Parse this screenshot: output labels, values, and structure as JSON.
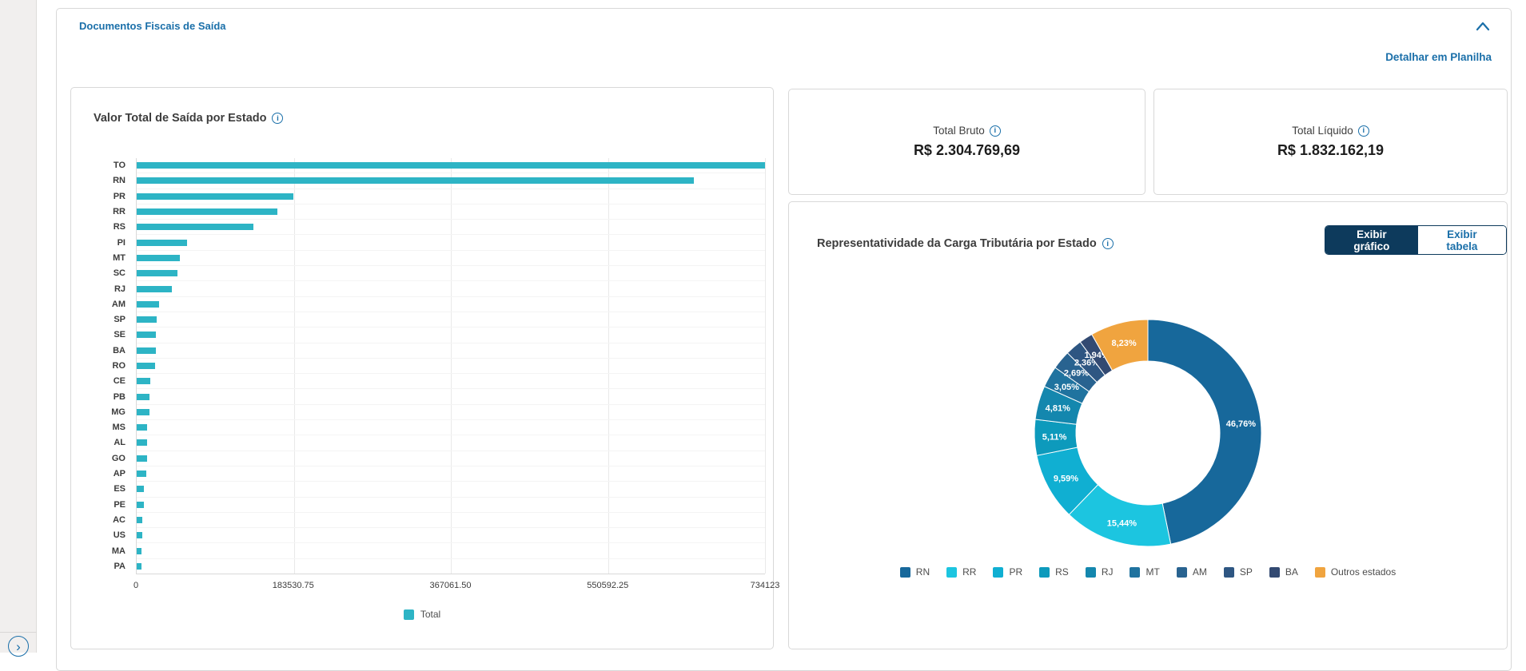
{
  "panel": {
    "title": "Documentos Fiscais de Saída",
    "detail_link": "Detalhar em Planilha"
  },
  "totals": [
    {
      "label": "Total Bruto",
      "value": "R$ 2.304.769,69"
    },
    {
      "label": "Total Líquido",
      "value": "R$ 1.832.162,19"
    }
  ],
  "toggle": {
    "chart_label": "Exibir gráfico",
    "table_label": "Exibir tabela"
  },
  "colors": {
    "accent_blue": "#1a6fa9",
    "dark_navy": "#0d3a5c",
    "bar_teal": "#2db4c5",
    "donut_palette": [
      "#17689b",
      "#1cc5e0",
      "#10afd2",
      "#0d9abc",
      "#1487ae",
      "#20739f",
      "#296390",
      "#2e5682",
      "#334a72",
      "#f0a43f"
    ]
  },
  "chart_data": [
    {
      "type": "bar",
      "orientation": "horizontal",
      "title": "Valor Total de Saída por Estado",
      "legend": [
        "Total"
      ],
      "legend_position": "bottom",
      "grid": true,
      "categories": [
        "TO",
        "RN",
        "PR",
        "RR",
        "RS",
        "PI",
        "MT",
        "SC",
        "RJ",
        "AM",
        "SP",
        "SE",
        "BA",
        "RO",
        "CE",
        "PB",
        "MG",
        "MS",
        "AL",
        "GO",
        "AP",
        "ES",
        "PE",
        "AC",
        "US",
        "MA",
        "PA"
      ],
      "values": [
        734123,
        651000,
        183000,
        164500,
        136000,
        59000,
        50000,
        47500,
        41500,
        26000,
        23000,
        22500,
        22200,
        21800,
        15500,
        15000,
        14600,
        12500,
        12200,
        12000,
        11000,
        8500,
        8000,
        7000,
        6200,
        5900,
        5500
      ],
      "xlim": [
        0,
        734123
      ],
      "xticks": [
        "0",
        "183530.75",
        "367061.50",
        "550592.25",
        "734123"
      ]
    },
    {
      "type": "pie",
      "subtype": "donut",
      "title": "Representatividade da Carga Tributária por Estado",
      "legend_position": "bottom",
      "labels": [
        "RN",
        "RR",
        "PR",
        "RS",
        "RJ",
        "MT",
        "AM",
        "SP",
        "BA",
        "Outros estados"
      ],
      "values": [
        46.76,
        15.44,
        9.59,
        5.11,
        4.81,
        3.05,
        2.69,
        2.36,
        1.94,
        8.23
      ],
      "value_labels": [
        "46,76%",
        "15,44%",
        "9,59%",
        "5,11%",
        "4,81%",
        "3,05%",
        "2,69%",
        "2,36%",
        "1,94%",
        "8,23%"
      ]
    }
  ]
}
